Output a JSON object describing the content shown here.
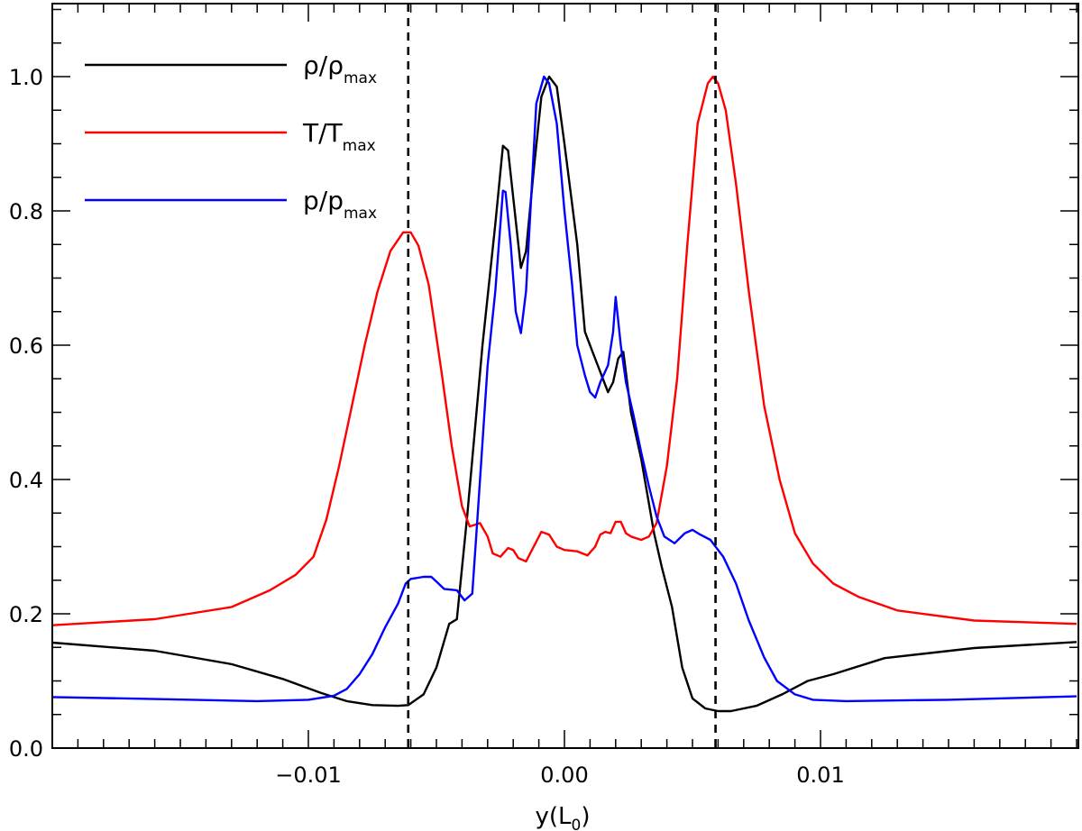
{
  "chart_data": {
    "type": "line",
    "xlabel": {
      "base": "y(L",
      "sub": "0",
      "close": ")"
    },
    "ylabel": "",
    "xlim": [
      -0.02,
      0.02
    ],
    "ylim": [
      0.0,
      1.1
    ],
    "x_ticks": [
      {
        "value": -0.01,
        "label": "−0.01"
      },
      {
        "value": 0.0,
        "label": "0.00"
      },
      {
        "value": 0.01,
        "label": "0.01"
      }
    ],
    "x_minor_step": 0.001,
    "y_ticks": [
      {
        "value": 0.0,
        "label": "0.0"
      },
      {
        "value": 0.2,
        "label": "0.2"
      },
      {
        "value": 0.4,
        "label": "0.4"
      },
      {
        "value": 0.6,
        "label": "0.6"
      },
      {
        "value": 0.8,
        "label": "0.8"
      },
      {
        "value": 1.0,
        "label": "1.0"
      }
    ],
    "y_minor_step": 0.05,
    "vlines": [
      {
        "x": -0.0061,
        "style": "dashed",
        "color": "#000000"
      },
      {
        "x": 0.0059,
        "style": "dashed",
        "color": "#000000"
      }
    ],
    "legend_position": "top-left",
    "grid": false,
    "series": [
      {
        "name": "ρ/ρ",
        "name_sub": "max",
        "color": "#000000",
        "points": [
          [
            -0.02,
            0.157
          ],
          [
            -0.016,
            0.145
          ],
          [
            -0.013,
            0.125
          ],
          [
            -0.011,
            0.103
          ],
          [
            -0.0095,
            0.082
          ],
          [
            -0.0085,
            0.07
          ],
          [
            -0.0075,
            0.064
          ],
          [
            -0.0065,
            0.063
          ],
          [
            -0.0061,
            0.064
          ],
          [
            -0.0055,
            0.08
          ],
          [
            -0.005,
            0.12
          ],
          [
            -0.0045,
            0.185
          ],
          [
            -0.0042,
            0.192
          ],
          [
            -0.0038,
            0.345
          ],
          [
            -0.0032,
            0.6
          ],
          [
            -0.0027,
            0.78
          ],
          [
            -0.0024,
            0.897
          ],
          [
            -0.0022,
            0.89
          ],
          [
            -0.002,
            0.82
          ],
          [
            -0.0017,
            0.715
          ],
          [
            -0.0015,
            0.74
          ],
          [
            -0.0012,
            0.86
          ],
          [
            -0.0009,
            0.97
          ],
          [
            -0.0006,
            1.0
          ],
          [
            -0.0003,
            0.985
          ],
          [
            0.0,
            0.9
          ],
          [
            0.0005,
            0.75
          ],
          [
            0.0008,
            0.62
          ],
          [
            0.0011,
            0.59
          ],
          [
            0.0014,
            0.56
          ],
          [
            0.0017,
            0.53
          ],
          [
            0.0019,
            0.545
          ],
          [
            0.0021,
            0.58
          ],
          [
            0.0023,
            0.59
          ],
          [
            0.0026,
            0.5
          ],
          [
            0.003,
            0.43
          ],
          [
            0.0035,
            0.32
          ],
          [
            0.0038,
            0.27
          ],
          [
            0.0042,
            0.21
          ],
          [
            0.0046,
            0.12
          ],
          [
            0.005,
            0.074
          ],
          [
            0.0055,
            0.059
          ],
          [
            0.006,
            0.055
          ],
          [
            0.0065,
            0.055
          ],
          [
            0.0075,
            0.063
          ],
          [
            0.0085,
            0.08
          ],
          [
            0.0095,
            0.1
          ],
          [
            0.0105,
            0.11
          ],
          [
            0.0125,
            0.134
          ],
          [
            0.016,
            0.149
          ],
          [
            0.02,
            0.158
          ]
        ]
      },
      {
        "name": "T/T",
        "name_sub": "max",
        "color": "#ff0000",
        "points": [
          [
            -0.02,
            0.183
          ],
          [
            -0.016,
            0.192
          ],
          [
            -0.013,
            0.21
          ],
          [
            -0.0115,
            0.235
          ],
          [
            -0.0105,
            0.258
          ],
          [
            -0.0098,
            0.285
          ],
          [
            -0.0093,
            0.34
          ],
          [
            -0.0088,
            0.42
          ],
          [
            -0.0083,
            0.51
          ],
          [
            -0.0078,
            0.6
          ],
          [
            -0.0073,
            0.68
          ],
          [
            -0.0068,
            0.74
          ],
          [
            -0.0063,
            0.768
          ],
          [
            -0.006,
            0.768
          ],
          [
            -0.0057,
            0.748
          ],
          [
            -0.0053,
            0.69
          ],
          [
            -0.0048,
            0.56
          ],
          [
            -0.0044,
            0.45
          ],
          [
            -0.004,
            0.36
          ],
          [
            -0.0037,
            0.33
          ],
          [
            -0.0033,
            0.335
          ],
          [
            -0.003,
            0.315
          ],
          [
            -0.0028,
            0.29
          ],
          [
            -0.0025,
            0.285
          ],
          [
            -0.0022,
            0.298
          ],
          [
            -0.002,
            0.295
          ],
          [
            -0.0018,
            0.283
          ],
          [
            -0.0015,
            0.278
          ],
          [
            -0.0012,
            0.3
          ],
          [
            -0.0009,
            0.322
          ],
          [
            -0.0006,
            0.318
          ],
          [
            -0.0003,
            0.3
          ],
          [
            0.0,
            0.295
          ],
          [
            0.0005,
            0.293
          ],
          [
            0.0009,
            0.287
          ],
          [
            0.0012,
            0.3
          ],
          [
            0.0014,
            0.318
          ],
          [
            0.0016,
            0.322
          ],
          [
            0.0018,
            0.32
          ],
          [
            0.002,
            0.337
          ],
          [
            0.0022,
            0.337
          ],
          [
            0.0024,
            0.32
          ],
          [
            0.0026,
            0.315
          ],
          [
            0.003,
            0.31
          ],
          [
            0.0033,
            0.315
          ],
          [
            0.0036,
            0.335
          ],
          [
            0.004,
            0.42
          ],
          [
            0.0044,
            0.55
          ],
          [
            0.0048,
            0.75
          ],
          [
            0.0052,
            0.93
          ],
          [
            0.0056,
            0.99
          ],
          [
            0.0058,
            1.0
          ],
          [
            0.006,
            0.99
          ],
          [
            0.0063,
            0.95
          ],
          [
            0.0067,
            0.84
          ],
          [
            0.0072,
            0.68
          ],
          [
            0.0078,
            0.51
          ],
          [
            0.0084,
            0.4
          ],
          [
            0.009,
            0.32
          ],
          [
            0.0097,
            0.275
          ],
          [
            0.0105,
            0.245
          ],
          [
            0.0115,
            0.225
          ],
          [
            0.013,
            0.205
          ],
          [
            0.016,
            0.19
          ],
          [
            0.02,
            0.185
          ]
        ]
      },
      {
        "name": "p/p",
        "name_sub": "max",
        "color": "#0000ff",
        "points": [
          [
            -0.02,
            0.076
          ],
          [
            -0.016,
            0.073
          ],
          [
            -0.012,
            0.07
          ],
          [
            -0.01,
            0.072
          ],
          [
            -0.009,
            0.078
          ],
          [
            -0.0085,
            0.088
          ],
          [
            -0.008,
            0.11
          ],
          [
            -0.0075,
            0.14
          ],
          [
            -0.007,
            0.18
          ],
          [
            -0.0065,
            0.215
          ],
          [
            -0.0062,
            0.245
          ],
          [
            -0.006,
            0.252
          ],
          [
            -0.0055,
            0.255
          ],
          [
            -0.0052,
            0.255
          ],
          [
            -0.005,
            0.248
          ],
          [
            -0.0047,
            0.237
          ],
          [
            -0.0042,
            0.235
          ],
          [
            -0.0039,
            0.22
          ],
          [
            -0.0036,
            0.23
          ],
          [
            -0.0034,
            0.34
          ],
          [
            -0.003,
            0.57
          ],
          [
            -0.0027,
            0.68
          ],
          [
            -0.0024,
            0.83
          ],
          [
            -0.0023,
            0.828
          ],
          [
            -0.0021,
            0.75
          ],
          [
            -0.0019,
            0.65
          ],
          [
            -0.0017,
            0.618
          ],
          [
            -0.0015,
            0.68
          ],
          [
            -0.0013,
            0.82
          ],
          [
            -0.0011,
            0.96
          ],
          [
            -0.0008,
            1.0
          ],
          [
            -0.0006,
            0.99
          ],
          [
            -0.0003,
            0.93
          ],
          [
            0.0,
            0.8
          ],
          [
            0.0003,
            0.69
          ],
          [
            0.0005,
            0.6
          ],
          [
            0.0008,
            0.555
          ],
          [
            0.001,
            0.53
          ],
          [
            0.0012,
            0.522
          ],
          [
            0.0014,
            0.545
          ],
          [
            0.0017,
            0.57
          ],
          [
            0.0019,
            0.62
          ],
          [
            0.002,
            0.672
          ],
          [
            0.0022,
            0.6
          ],
          [
            0.0024,
            0.545
          ],
          [
            0.0027,
            0.495
          ],
          [
            0.003,
            0.44
          ],
          [
            0.0033,
            0.39
          ],
          [
            0.0036,
            0.345
          ],
          [
            0.0039,
            0.315
          ],
          [
            0.0043,
            0.305
          ],
          [
            0.0047,
            0.32
          ],
          [
            0.005,
            0.325
          ],
          [
            0.0053,
            0.318
          ],
          [
            0.0057,
            0.31
          ],
          [
            0.0062,
            0.285
          ],
          [
            0.0067,
            0.245
          ],
          [
            0.0072,
            0.19
          ],
          [
            0.0078,
            0.135
          ],
          [
            0.0083,
            0.1
          ],
          [
            0.009,
            0.08
          ],
          [
            0.0097,
            0.072
          ],
          [
            0.011,
            0.07
          ],
          [
            0.015,
            0.072
          ],
          [
            0.02,
            0.077
          ]
        ]
      }
    ]
  }
}
